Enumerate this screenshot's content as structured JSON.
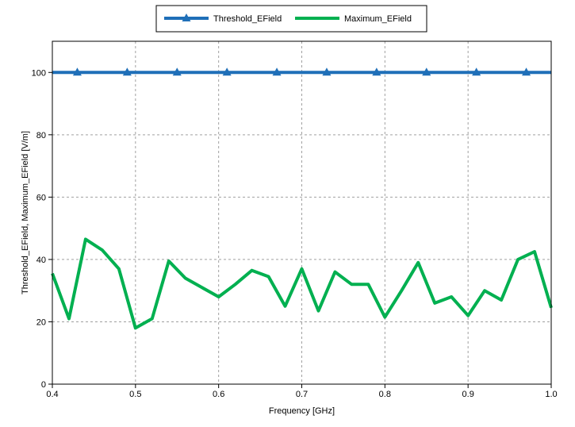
{
  "chart_data": {
    "type": "line",
    "title": "",
    "xlabel": "Frequency [GHz]",
    "ylabel": "Threshold_EField, Maximum_EField [V/m]",
    "xlim": [
      0.4,
      1.0
    ],
    "ylim": [
      0,
      110
    ],
    "grid": true,
    "legend_position": "top-center",
    "x_ticks": [
      "0.4",
      "0.5",
      "0.6",
      "0.7",
      "0.8",
      "0.9",
      "1.0"
    ],
    "y_ticks": [
      "0",
      "20",
      "40",
      "60",
      "80",
      "100"
    ],
    "series": [
      {
        "name": "Threshold_EField",
        "color": "#1f6fb8",
        "marker": "triangle",
        "x": [
          0.4,
          1.0
        ],
        "y": [
          100,
          100
        ],
        "marker_x": [
          0.43,
          0.49,
          0.55,
          0.61,
          0.67,
          0.73,
          0.79,
          0.85,
          0.91,
          0.97
        ]
      },
      {
        "name": "Maximum_EField",
        "color": "#00b050",
        "marker": "none",
        "x": [
          0.4,
          0.42,
          0.44,
          0.46,
          0.48,
          0.5,
          0.52,
          0.54,
          0.56,
          0.58,
          0.6,
          0.62,
          0.64,
          0.66,
          0.68,
          0.7,
          0.72,
          0.74,
          0.76,
          0.78,
          0.8,
          0.82,
          0.84,
          0.86,
          0.88,
          0.9,
          0.92,
          0.94,
          0.96,
          0.98,
          1.0
        ],
        "y": [
          35.5,
          21.0,
          46.5,
          43.0,
          37.0,
          18.0,
          21.0,
          39.5,
          34.0,
          31.0,
          28.0,
          32.0,
          36.5,
          34.5,
          25.0,
          37.0,
          23.5,
          36.0,
          32.0,
          32.0,
          21.5,
          30.0,
          39.0,
          26.0,
          28.0,
          22.0,
          30.0,
          27.0,
          40.0,
          42.5,
          24.5
        ]
      }
    ]
  }
}
